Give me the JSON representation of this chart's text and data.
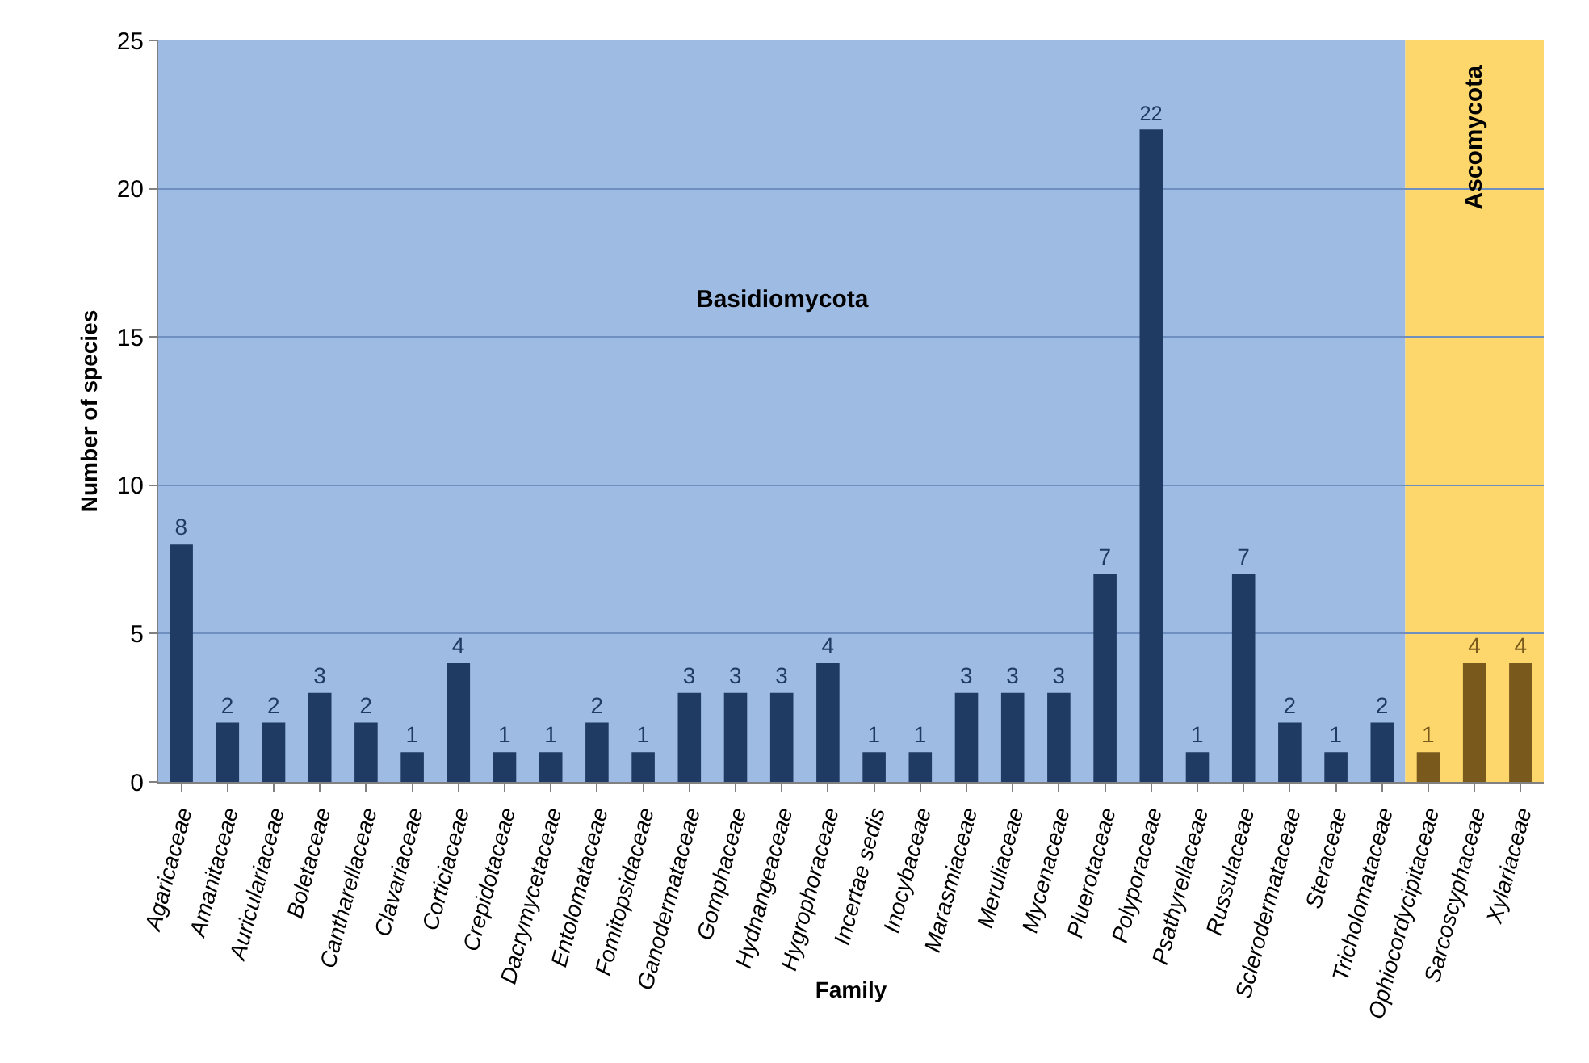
{
  "chart_data": {
    "type": "bar",
    "xlabel": "Family",
    "ylabel": "Number of species",
    "categories": [
      "Agaricaceae",
      "Amanitaceae",
      "Auriculariaceae",
      "Boletaceae",
      "Cantharellaceae",
      "Clavariaceae",
      "Corticiaceae",
      "Crepidotaceae",
      "Dacrymycetaceae",
      "Entolomataceae",
      "Fomitopsidaceae",
      "Ganodermataceae",
      "Gomphaceae",
      "Hydnangeaceae",
      "Hygrophoraceae",
      "Incertae sedis",
      "Inocybaceae",
      "Marasmiaceae",
      "Meruliaceae",
      "Mycenaceae",
      "Pluerotaceae",
      "Polyporaceae",
      "Psathyrellaceae",
      "Russulaceae",
      "Sclerodermataceae",
      "Steraceae",
      "Tricholomataceae",
      "Ophiocordycipitaceae",
      "Sarcoscyphaceae",
      "Xylariaceae"
    ],
    "values": [
      8,
      2,
      2,
      3,
      2,
      1,
      4,
      1,
      1,
      2,
      1,
      3,
      3,
      3,
      4,
      1,
      1,
      3,
      3,
      3,
      7,
      22,
      1,
      7,
      2,
      1,
      2,
      1,
      4,
      4
    ],
    "colors": [
      "#1f3a63",
      "#1f3a63",
      "#1f3a63",
      "#1f3a63",
      "#1f3a63",
      "#1f3a63",
      "#1f3a63",
      "#1f3a63",
      "#1f3a63",
      "#1f3a63",
      "#1f3a63",
      "#1f3a63",
      "#1f3a63",
      "#1f3a63",
      "#1f3a63",
      "#1f3a63",
      "#1f3a63",
      "#1f3a63",
      "#1f3a63",
      "#1f3a63",
      "#1f3a63",
      "#1f3a63",
      "#1f3a63",
      "#1f3a63",
      "#1f3a63",
      "#1f3a63",
      "#1f3a63",
      "#7a5a1c",
      "#7a5a1c",
      "#7a5a1c"
    ],
    "data_labels": true,
    "ylim": [
      0,
      25
    ],
    "yticks": [
      0,
      5,
      10,
      15,
      20,
      25
    ],
    "grid": "y",
    "bands": [
      {
        "axis": "x",
        "from": "Agaricaceae",
        "to": "Tricholomataceae",
        "label": "Basidiomycota",
        "color": "#9dbbe3"
      },
      {
        "axis": "x",
        "from": "Ophiocordycipitaceae",
        "to": "Xylariaceae",
        "label": "Ascomycota",
        "color": "#fdd76c"
      }
    ]
  }
}
